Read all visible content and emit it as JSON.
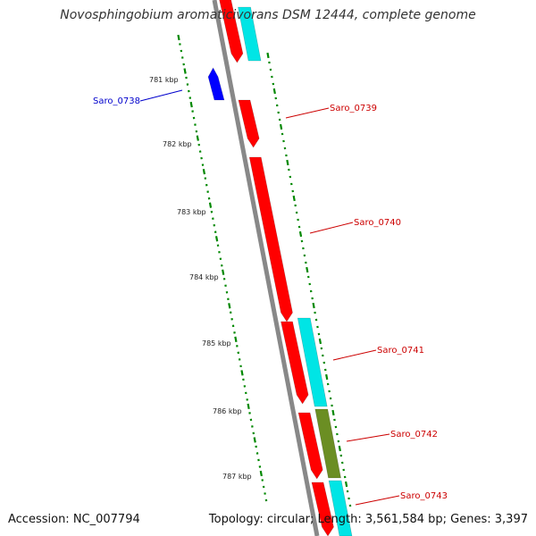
{
  "title": "Novosphingobium aromaticivorans DSM 12444, complete genome",
  "footer": {
    "accession": "Accession: NC_007794",
    "summary": "Topology: circular; Length: 3,561,584 bp; Genes: 3,397"
  },
  "ticks": [
    "781 kbp",
    "782 kbp",
    "783 kbp",
    "784 kbp",
    "785 kbp",
    "786 kbp",
    "787 kbp"
  ],
  "genes": [
    {
      "name": "Saro_0738",
      "color": "#0000cc"
    },
    {
      "name": "Saro_0739",
      "color": "#cc0000"
    },
    {
      "name": "Saro_0740",
      "color": "#cc0000"
    },
    {
      "name": "Saro_0741",
      "color": "#cc0000"
    },
    {
      "name": "Saro_0742",
      "color": "#cc0000"
    },
    {
      "name": "Saro_0743",
      "color": "#cc0000"
    }
  ],
  "colors": {
    "backbone": "#888888",
    "cds_forward": "#ff0000",
    "cds_reverse": "#0000ff",
    "feature_cyan": "#00e5e5",
    "feature_olive": "#6b8e23",
    "scale_dots": "#008800"
  }
}
